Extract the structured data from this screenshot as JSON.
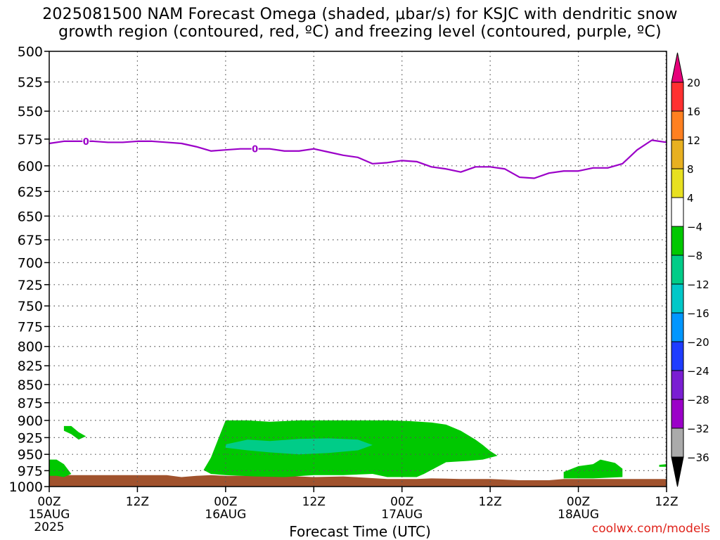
{
  "title_line1": "2025081500 NAM Forecast Omega (shaded, μbar/s) for KSJC with dendritic snow",
  "title_line2": "growth region (contoured, red, ºC) and freezing level (contoured, purple, ºC)",
  "xlabel": "Forecast Time (UTC)",
  "credit": "coolwx.com/models",
  "colors": {
    "freezing_line": "#9b00c8",
    "omega_light": "#00c800",
    "omega_dark": "#00cc88",
    "ground": "#a0522d",
    "grid": "#555555"
  },
  "chart_data": {
    "type": "time-height",
    "yaxis": {
      "label": "",
      "ticks": [
        500,
        525,
        550,
        575,
        600,
        625,
        650,
        675,
        700,
        725,
        750,
        775,
        800,
        825,
        850,
        875,
        900,
        925,
        950,
        975,
        1000
      ],
      "range": [
        500,
        1000
      ],
      "scale": "log-pressure",
      "inverted": true
    },
    "xaxis": {
      "range_hours": [
        0,
        84
      ],
      "tick_hours": [
        0,
        12,
        24,
        36,
        48,
        60,
        72,
        84
      ],
      "tick_labels": [
        "00Z",
        "12Z",
        "00Z",
        "12Z",
        "00Z",
        "12Z",
        "00Z",
        "12Z"
      ],
      "date_labels": [
        "15AUG",
        "",
        "16AUG",
        "",
        "17AUG",
        "",
        "18AUG",
        ""
      ],
      "year_label": "2025"
    },
    "grid": true,
    "colorbar": {
      "ticks": [
        20,
        16,
        12,
        8,
        4,
        -4,
        -8,
        -12,
        -16,
        -20,
        -24,
        -28,
        -32,
        -36
      ],
      "colors": [
        "#e6007a",
        "#ff3030",
        "#ff8020",
        "#e8b020",
        "#e8e020",
        "#ffffff",
        "#00c800",
        "#00cc88",
        "#00c8c8",
        "#0096ff",
        "#1e3cff",
        "#7a1ed2",
        "#9b00c8",
        "#aaaaaa",
        "#000000"
      ]
    },
    "freezing_level": {
      "name": "0",
      "x": [
        0,
        2,
        4,
        6,
        8,
        10,
        12,
        14,
        16,
        18,
        20,
        22,
        24,
        26,
        28,
        30,
        32,
        34,
        36,
        38,
        40,
        42,
        44,
        46,
        48,
        50,
        52,
        54,
        56,
        58,
        60,
        62,
        64,
        66,
        68,
        70,
        72,
        74,
        76,
        78,
        80,
        82,
        84
      ],
      "y": [
        579,
        577,
        577,
        577,
        578,
        578,
        577,
        577,
        578,
        579,
        582,
        586,
        585,
        584,
        584,
        584,
        586,
        586,
        584,
        587,
        590,
        592,
        598,
        597,
        595,
        596,
        601,
        603,
        606,
        601,
        601,
        603,
        611,
        612,
        607,
        605,
        605,
        602,
        602,
        598,
        585,
        576,
        578
      ],
      "labels_at_hours": [
        5,
        28
      ]
    },
    "omega_regions": [
      {
        "value": -4,
        "x": [
          24,
          25,
          27,
          30,
          34,
          38,
          42,
          46,
          49,
          52,
          54,
          56,
          58,
          59,
          60,
          61,
          59,
          57,
          54,
          51,
          50,
          48,
          46,
          44,
          40,
          36,
          32,
          28,
          24,
          22,
          21,
          22
        ],
        "y": [
          900,
          900,
          900,
          902,
          900,
          900,
          900,
          900,
          901,
          903,
          906,
          915,
          928,
          936,
          945,
          952,
          958,
          960,
          962,
          980,
          985,
          985,
          985,
          980,
          982,
          982,
          985,
          984,
          982,
          980,
          974,
          955
        ]
      },
      {
        "value": -4,
        "x": [
          22,
          23,
          25,
          24,
          22
        ],
        "y": [
          975,
          960,
          945,
          935,
          958
        ]
      },
      {
        "value": -8,
        "x": [
          24,
          27,
          30,
          34,
          38,
          42,
          44,
          42,
          38,
          34,
          30,
          27,
          24
        ],
        "y": [
          935,
          928,
          930,
          927,
          926,
          928,
          936,
          944,
          948,
          950,
          947,
          944,
          940
        ]
      },
      {
        "value": -4,
        "x": [
          0,
          1,
          2,
          3,
          2,
          1,
          0
        ],
        "y": [
          958,
          958,
          965,
          980,
          985,
          983,
          983
        ]
      },
      {
        "value": -4,
        "x": [
          2,
          3,
          4,
          5,
          4,
          3,
          2
        ],
        "y": [
          908,
          908,
          917,
          923,
          928,
          920,
          915
        ]
      },
      {
        "value": -4,
        "x": [
          70,
          72,
          74,
          75,
          77,
          78,
          78,
          74,
          70
        ],
        "y": [
          977,
          968,
          965,
          958,
          963,
          972,
          985,
          987,
          987
        ]
      },
      {
        "value": -4,
        "x": [
          83,
          84,
          84,
          83
        ],
        "y": [
          966,
          965,
          969,
          969
        ]
      }
    ],
    "ground": {
      "x": [
        0,
        4,
        8,
        12,
        16,
        18,
        20,
        22,
        24,
        28,
        32,
        36,
        40,
        46,
        50,
        52,
        56,
        60,
        64,
        68,
        70,
        74,
        78,
        82,
        84
      ],
      "y": [
        982,
        982,
        982,
        982,
        982,
        985,
        983,
        982,
        983,
        983,
        983,
        985,
        984,
        988,
        988,
        987,
        988,
        988,
        990,
        990,
        988,
        988,
        988,
        988,
        988
      ]
    }
  }
}
